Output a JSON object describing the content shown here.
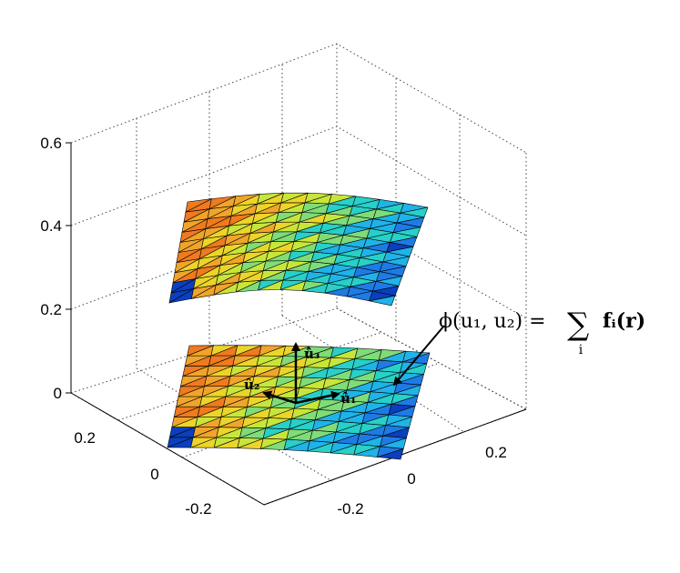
{
  "chart_data": {
    "type": "surface",
    "title": "",
    "z_ticks": [
      "0.6",
      "0.4",
      "0.2",
      "0"
    ],
    "x_ticks": [
      "0.2",
      "0",
      "-0.2"
    ],
    "y_ticks": [
      "0.2",
      "0",
      "-0.2"
    ],
    "zlim": [
      0,
      0.6
    ],
    "grid": "on",
    "colormap": "jet",
    "surfaces": [
      {
        "name": "",
        "z_level": 0.45,
        "mesh": "triangulated 10x10"
      },
      {
        "name": "",
        "z_level": 0.0,
        "mesh": "triangulated 10x10"
      }
    ],
    "annotation": {
      "lhs": "ϕ(u₁, u₂) =",
      "sum_symbol": "∑",
      "sum_index": "i",
      "rhs": "fᵢ(r)"
    },
    "vectors": [
      {
        "label": "û₃"
      },
      {
        "label": "û₂"
      },
      {
        "label": "û₁"
      }
    ]
  }
}
